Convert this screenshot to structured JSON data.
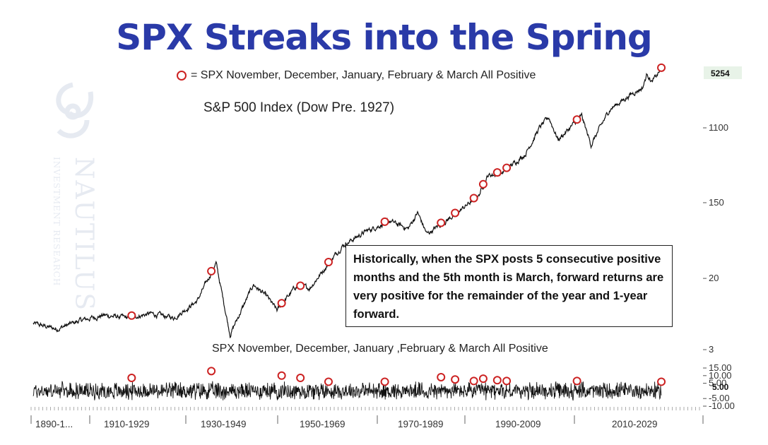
{
  "title": "SPX Streaks into the Spring",
  "legend_text": "= SPX November, December, January, February & March All Positive",
  "subtitle": "S&P 500 Index (Dow Pre. 1927)",
  "lower_label": "SPX November, December, January ,February & March All Positive",
  "annotation": "Historically, when the SPX posts 5 consecutive positive months and the 5th month is March, forward returns are very positive for the remainder of the year and 1-year forward.",
  "watermark": {
    "name": "NAUTILUS",
    "tagline": "INVESTMENT RESEARCH"
  },
  "colors": {
    "title": "#2a3aa8",
    "marker": "#cc2222",
    "line": "#111111",
    "lastvalue_bg": "#e8f3e8"
  },
  "chart_data": {
    "type": "line",
    "y_scale": "log",
    "y_ticks": [
      "1100",
      "150",
      "20",
      "3"
    ],
    "y_tick_values": [
      1100,
      150,
      20,
      3
    ],
    "last_value": "5254",
    "lower_y_ticks": [
      "15.00",
      "10.00",
      "5.00",
      "-5.00",
      "-10.00"
    ],
    "lower_y_tick_values": [
      15,
      10,
      5,
      -5,
      -10
    ],
    "lower_last_value": "5.00",
    "x_labels": [
      "1890-1...",
      "1910-1929",
      "1930-1949",
      "1950-1969",
      "1970-1989",
      "1990-2009",
      "2010-2029"
    ],
    "x_label_years": [
      1890,
      1910,
      1930,
      1950,
      1970,
      1990,
      2010
    ],
    "x_range": [
      1890,
      2030
    ],
    "series_keypoints": [
      [
        1890,
        6.0
      ],
      [
        1895,
        5.2
      ],
      [
        1900,
        6.5
      ],
      [
        1905,
        7.5
      ],
      [
        1910,
        7.0
      ],
      [
        1915,
        7.8
      ],
      [
        1920,
        7.0
      ],
      [
        1925,
        11.0
      ],
      [
        1929,
        30.0
      ],
      [
        1932,
        4.5
      ],
      [
        1935,
        10.0
      ],
      [
        1937,
        17.0
      ],
      [
        1940,
        12.0
      ],
      [
        1942,
        8.5
      ],
      [
        1946,
        16.0
      ],
      [
        1949,
        15.5
      ],
      [
        1954,
        35.0
      ],
      [
        1956,
        48.0
      ],
      [
        1961,
        70.0
      ],
      [
        1966,
        92.0
      ],
      [
        1970,
        75.0
      ],
      [
        1972,
        115.0
      ],
      [
        1974,
        65.0
      ],
      [
        1980,
        110.0
      ],
      [
        1985,
        180.0
      ],
      [
        1987,
        310.0
      ],
      [
        1990,
        330.0
      ],
      [
        1995,
        550.0
      ],
      [
        1998,
        1100.0
      ],
      [
        2000,
        1450.0
      ],
      [
        2002,
        800.0
      ],
      [
        2007,
        1500.0
      ],
      [
        2009,
        700.0
      ],
      [
        2013,
        1800.0
      ],
      [
        2018,
        2800.0
      ],
      [
        2020,
        3200.0
      ],
      [
        2021,
        4700.0
      ],
      [
        2022,
        3700.0
      ],
      [
        2024,
        5254.0
      ]
    ],
    "signal_years": [
      1911,
      1928,
      1943,
      1947,
      1953,
      1965,
      1977,
      1980,
      1984,
      1986,
      1989,
      1991,
      2006,
      2024
    ],
    "signal_returns": [
      8.5,
      13.0,
      10.0,
      8.5,
      6.0,
      6.0,
      9.0,
      7.5,
      6.5,
      8.0,
      7.0,
      6.5,
      6.5,
      6.0
    ]
  }
}
